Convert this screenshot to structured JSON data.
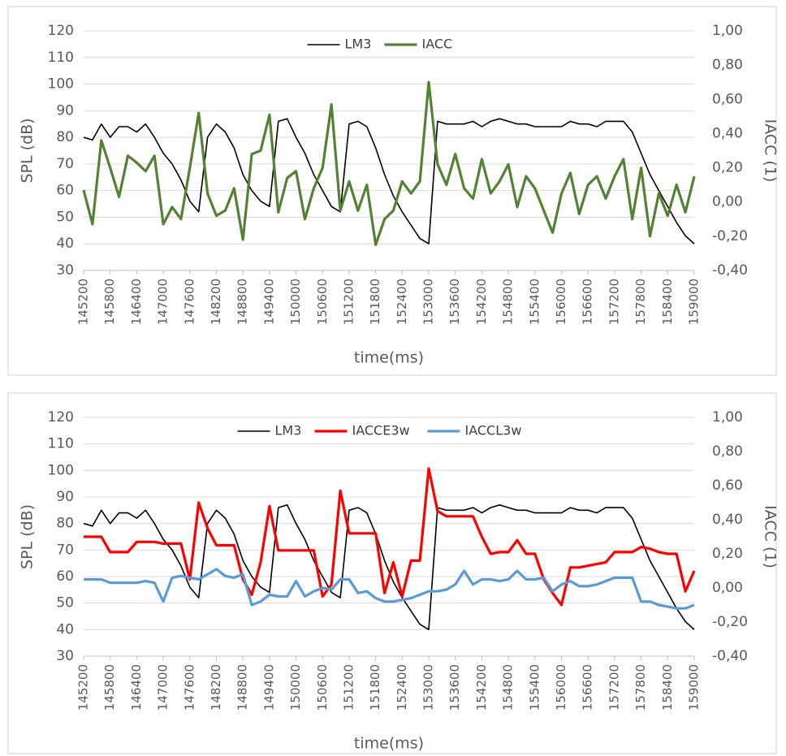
{
  "chart_data": [
    {
      "type": "line",
      "legend": "top",
      "grid": true,
      "x_label": "time(ms)",
      "y_label": "SPL (dB)",
      "y2_label": "IACC (1)",
      "x": [
        145200,
        145400,
        145600,
        145800,
        146000,
        146200,
        146400,
        146600,
        146800,
        147000,
        147200,
        147400,
        147600,
        147800,
        148000,
        148200,
        148400,
        148600,
        148800,
        149000,
        149200,
        149400,
        149600,
        149800,
        150000,
        150200,
        150400,
        150600,
        150800,
        151000,
        151200,
        151400,
        151600,
        151800,
        152000,
        152200,
        152400,
        152600,
        152800,
        153000,
        153200,
        153400,
        153600,
        153800,
        154000,
        154200,
        154400,
        154600,
        154800,
        155000,
        155200,
        155400,
        155600,
        155800,
        156000,
        156200,
        156400,
        156600,
        156800,
        157000,
        157200,
        157400,
        157600,
        157800,
        158000,
        158200,
        158400,
        158600,
        158800,
        159000
      ],
      "xlim": [
        145200,
        159000
      ],
      "xticks": [
        145200,
        145800,
        146400,
        147000,
        147600,
        148200,
        148800,
        149400,
        150000,
        150600,
        151200,
        151800,
        152400,
        153000,
        153600,
        154200,
        154800,
        155400,
        156000,
        156600,
        157200,
        157800,
        158400,
        159000
      ],
      "ylim": [
        30,
        120
      ],
      "yticks": [
        30,
        40,
        50,
        60,
        70,
        80,
        90,
        100,
        110,
        120
      ],
      "y2lim": [
        -0.4,
        1
      ],
      "y2ticks": [
        {
          "value": -0.4,
          "label": "-0,40"
        },
        {
          "value": -0.2,
          "label": "-0,20"
        },
        {
          "value": 0,
          "label": "0,00"
        },
        {
          "value": 0.2,
          "label": "0,20"
        },
        {
          "value": 0.4,
          "label": "0,40"
        },
        {
          "value": 0.6,
          "label": "0,60"
        },
        {
          "value": 0.8,
          "label": "0,80"
        },
        {
          "value": 1,
          "label": "1,00"
        }
      ],
      "series": [
        {
          "name": "LM3",
          "color": "#000000",
          "values": [
            80,
            79,
            85,
            80,
            84,
            84,
            82,
            85,
            80,
            74,
            70,
            64,
            56,
            52,
            80,
            85,
            82,
            76,
            66,
            60,
            56,
            54,
            86,
            87,
            80,
            74,
            66,
            60,
            54,
            52,
            85,
            86,
            84,
            76,
            66,
            58,
            52,
            47,
            42,
            40,
            86,
            85,
            85,
            85,
            86,
            84,
            86,
            87,
            86,
            85,
            85,
            84,
            84,
            84,
            84,
            86,
            85,
            85,
            84,
            86,
            86,
            86,
            82,
            74,
            66,
            60,
            54,
            48,
            43,
            40
          ]
        },
        {
          "name": "IACC",
          "color": "#548235",
          "axis": "y2",
          "values": [
            0.07,
            -0.13,
            0.36,
            0.2,
            0.03,
            0.27,
            0.23,
            0.18,
            0.27,
            -0.13,
            -0.03,
            -0.1,
            0.2,
            0.52,
            0.05,
            -0.08,
            -0.05,
            0.08,
            -0.22,
            0.28,
            0.3,
            0.51,
            -0.06,
            0.14,
            0.18,
            -0.1,
            0.08,
            0.2,
            0.57,
            -0.05,
            0.12,
            -0.05,
            0.1,
            -0.25,
            -0.1,
            -0.05,
            0.12,
            0.05,
            0.12,
            0.7,
            0.22,
            0.1,
            0.28,
            0.08,
            0.02,
            0.25,
            0.05,
            0.12,
            0.22,
            -0.03,
            0.15,
            0.08,
            -0.05,
            -0.18,
            0.05,
            0.17,
            -0.07,
            0.1,
            0.15,
            0.02,
            0.15,
            0.25,
            -0.1,
            0.2,
            -0.2,
            0.05,
            -0.08,
            0.1,
            -0.06,
            0.15
          ]
        }
      ]
    },
    {
      "type": "line",
      "legend": "top",
      "grid": true,
      "x_label": "time(ms)",
      "y_label": "SPL (dB)",
      "y2_label": "IACC (1)",
      "x": [
        145200,
        145400,
        145600,
        145800,
        146000,
        146200,
        146400,
        146600,
        146800,
        147000,
        147200,
        147400,
        147600,
        147800,
        148000,
        148200,
        148400,
        148600,
        148800,
        149000,
        149200,
        149400,
        149600,
        149800,
        150000,
        150200,
        150400,
        150600,
        150800,
        151000,
        151200,
        151400,
        151600,
        151800,
        152000,
        152200,
        152400,
        152600,
        152800,
        153000,
        153200,
        153400,
        153600,
        153800,
        154000,
        154200,
        154400,
        154600,
        154800,
        155000,
        155200,
        155400,
        155600,
        155800,
        156000,
        156200,
        156400,
        156600,
        156800,
        157000,
        157200,
        157400,
        157600,
        157800,
        158000,
        158200,
        158400,
        158600,
        158800,
        159000
      ],
      "xlim": [
        145200,
        159000
      ],
      "xticks": [
        145200,
        145800,
        146400,
        147000,
        147600,
        148200,
        148800,
        149400,
        150000,
        150600,
        151200,
        151800,
        152400,
        153000,
        153600,
        154200,
        154800,
        155400,
        156000,
        156600,
        157200,
        157800,
        158400,
        159000
      ],
      "ylim": [
        30,
        120
      ],
      "yticks": [
        30,
        40,
        50,
        60,
        70,
        80,
        90,
        100,
        110,
        120
      ],
      "y2lim": [
        -0.4,
        1
      ],
      "y2ticks": [
        {
          "value": -0.4,
          "label": "-0,40"
        },
        {
          "value": -0.2,
          "label": "-0,20"
        },
        {
          "value": 0,
          "label": "0,00"
        },
        {
          "value": 0.2,
          "label": "0,20"
        },
        {
          "value": 0.4,
          "label": "0,40"
        },
        {
          "value": 0.6,
          "label": "0,60"
        },
        {
          "value": 0.8,
          "label": "0,80"
        },
        {
          "value": 1,
          "label": "1,00"
        }
      ],
      "series": [
        {
          "name": "LM3",
          "color": "#000000",
          "values": [
            80,
            79,
            85,
            80,
            84,
            84,
            82,
            85,
            80,
            74,
            70,
            64,
            56,
            52,
            80,
            85,
            82,
            76,
            66,
            60,
            56,
            54,
            86,
            87,
            80,
            74,
            66,
            60,
            54,
            52,
            85,
            86,
            84,
            76,
            66,
            58,
            52,
            47,
            42,
            40,
            86,
            85,
            85,
            85,
            86,
            84,
            86,
            87,
            86,
            85,
            85,
            84,
            84,
            84,
            84,
            86,
            85,
            85,
            84,
            86,
            86,
            86,
            82,
            74,
            66,
            60,
            54,
            48,
            43,
            40
          ]
        },
        {
          "name": "IACCE3w",
          "color": "#ff0000",
          "axis": "y2",
          "values": [
            0.3,
            0.3,
            0.3,
            0.21,
            0.21,
            0.21,
            0.27,
            0.27,
            0.27,
            0.26,
            0.26,
            0.26,
            0.05,
            0.5,
            0.35,
            0.25,
            0.25,
            0.25,
            0.05,
            -0.04,
            0.15,
            0.48,
            0.22,
            0.22,
            0.22,
            0.22,
            0.22,
            -0.05,
            0.02,
            0.57,
            0.32,
            0.32,
            0.32,
            0.32,
            -0.03,
            0.15,
            -0.05,
            0.16,
            0.16,
            0.7,
            0.45,
            0.42,
            0.42,
            0.42,
            0.42,
            0.3,
            0.2,
            0.21,
            0.21,
            0.28,
            0.2,
            0.2,
            0.05,
            -0.03,
            -0.1,
            0.12,
            0.12,
            0.13,
            0.14,
            0.15,
            0.21,
            0.21,
            0.21,
            0.24,
            0.23,
            0.21,
            0.2,
            0.2,
            -0.02,
            0.1
          ]
        },
        {
          "name": "IACCL3w",
          "color": "#5b9bd5",
          "axis": "y2",
          "values": [
            0.05,
            0.05,
            0.05,
            0.03,
            0.03,
            0.03,
            0.03,
            0.04,
            0.03,
            -0.08,
            0.06,
            0.07,
            0.06,
            0.05,
            0.08,
            0.11,
            0.07,
            0.06,
            0.08,
            -0.1,
            -0.08,
            -0.04,
            -0.05,
            -0.05,
            0.04,
            -0.05,
            -0.02,
            0,
            -0.01,
            0.05,
            0.05,
            -0.03,
            -0.02,
            -0.06,
            -0.08,
            -0.08,
            -0.07,
            -0.06,
            -0.04,
            -0.02,
            -0.02,
            -0.01,
            0.02,
            0.1,
            0.02,
            0.05,
            0.05,
            0.04,
            0.05,
            0.1,
            0.05,
            0.05,
            0.06,
            -0.02,
            0.02,
            0.04,
            0.01,
            0.01,
            0.02,
            0.04,
            0.06,
            0.06,
            0.06,
            -0.08,
            -0.08,
            -0.1,
            -0.11,
            -0.12,
            -0.12,
            -0.1
          ]
        }
      ]
    }
  ]
}
